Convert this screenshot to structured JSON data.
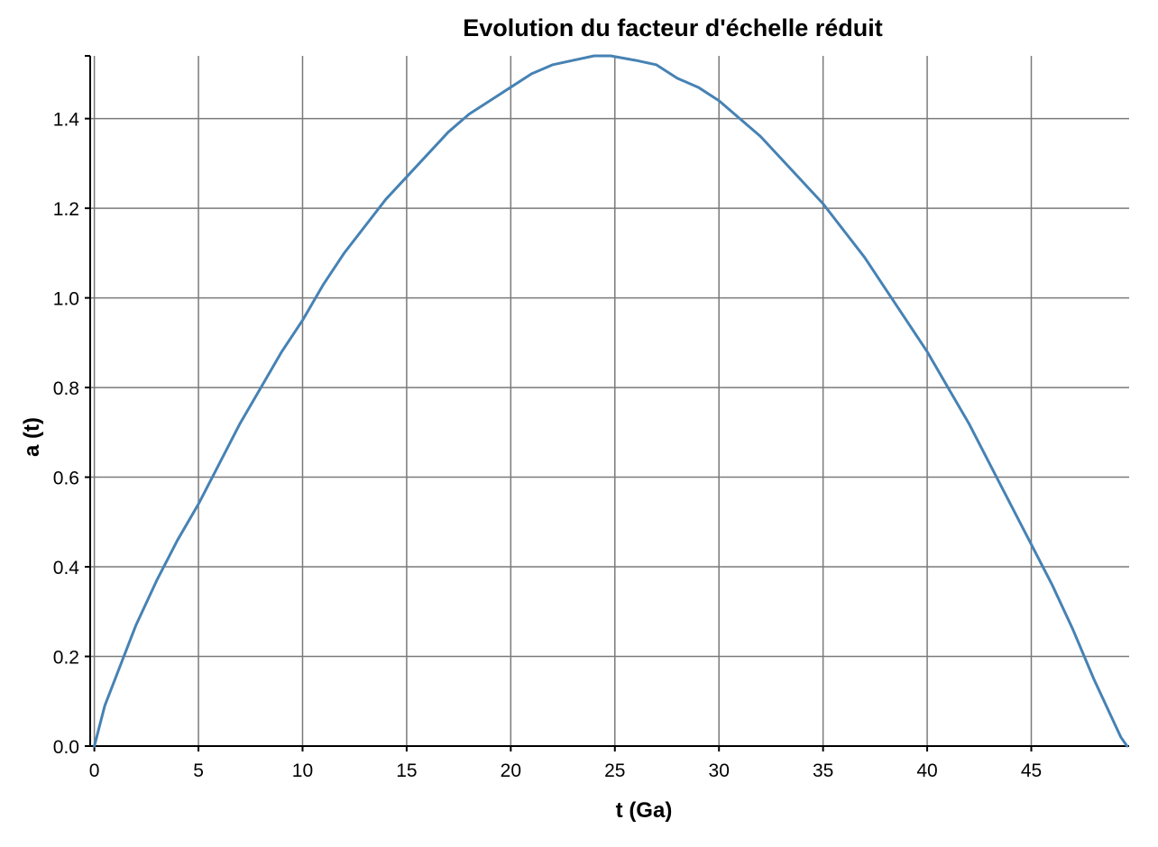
{
  "chart_data": {
    "type": "line",
    "title": "Evolution du facteur d'échelle réduit",
    "xlabel": "t (Ga)",
    "ylabel": "a (t)",
    "xlim": [
      -0.2,
      49.7
    ],
    "ylim": [
      0,
      1.54
    ],
    "x_ticks": [
      0,
      5,
      10,
      15,
      20,
      25,
      30,
      35,
      40,
      45
    ],
    "y_ticks": [
      "0.0",
      "0.2",
      "0.4",
      "0.6",
      "0.8",
      "1.0",
      "1.2",
      "1.4"
    ],
    "grid": true,
    "series": [
      {
        "color": "#4682b4",
        "x": [
          0,
          0.5,
          1,
          2,
          3,
          4,
          5,
          6,
          7,
          8,
          9,
          10,
          11,
          12,
          13,
          14,
          15,
          16,
          17,
          18,
          19,
          20,
          21,
          22,
          23,
          24,
          24.8,
          26,
          27,
          28,
          29,
          30,
          31,
          32,
          33,
          34,
          35,
          36,
          37,
          38,
          39,
          40,
          41,
          42,
          43,
          44,
          45,
          46,
          47,
          48,
          48.5,
          49,
          49.3,
          49.6
        ],
        "y": [
          0.0,
          0.09,
          0.15,
          0.27,
          0.37,
          0.46,
          0.54,
          0.63,
          0.72,
          0.8,
          0.88,
          0.95,
          1.03,
          1.1,
          1.16,
          1.22,
          1.27,
          1.32,
          1.37,
          1.41,
          1.44,
          1.47,
          1.5,
          1.52,
          1.53,
          1.54,
          1.54,
          1.53,
          1.52,
          1.49,
          1.47,
          1.44,
          1.4,
          1.36,
          1.31,
          1.26,
          1.21,
          1.15,
          1.09,
          1.02,
          0.95,
          0.88,
          0.8,
          0.72,
          0.63,
          0.54,
          0.45,
          0.36,
          0.26,
          0.15,
          0.1,
          0.05,
          0.02,
          0.0
        ]
      }
    ]
  }
}
